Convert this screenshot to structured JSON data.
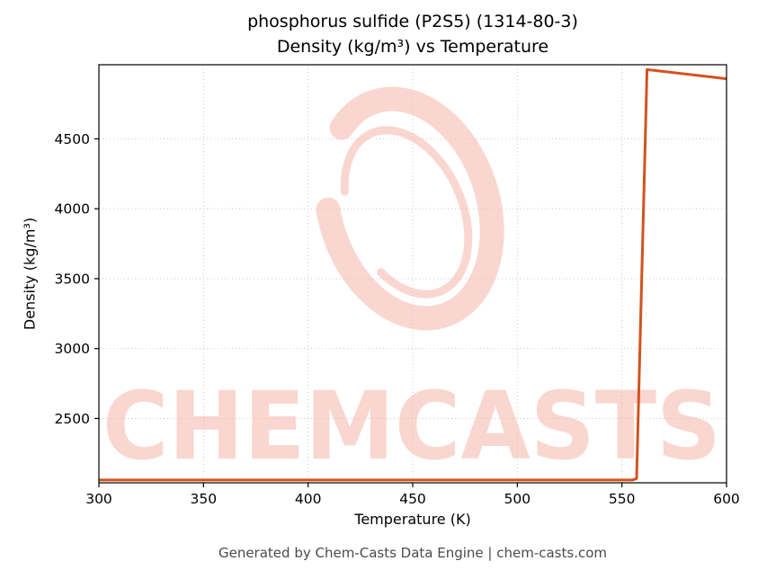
{
  "title": {
    "line1": "phosphorus sulfide (P2S5) (1314-80-3)",
    "line2": "Density (kg/m³) vs Temperature"
  },
  "footer": "Generated by Chem-Casts Data Engine | chem-casts.com",
  "watermark": {
    "text": "CHEMCASTS",
    "color": "#f5b6a8",
    "logo_color": "#f6beb2",
    "text_opacity": 0.55,
    "logo_opacity": 0.6
  },
  "chart_data": {
    "type": "line",
    "title": "phosphorus sulfide (P2S5) (1314-80-3) — Density (kg/m³) vs Temperature",
    "xlabel": "Temperature (K)",
    "ylabel": "Density (kg/m³)",
    "xlim": [
      300,
      600
    ],
    "ylim": [
      2040,
      5030
    ],
    "x_ticks": [
      300,
      350,
      400,
      450,
      500,
      550,
      600
    ],
    "y_ticks": [
      2500,
      3000,
      3500,
      4000,
      4500
    ],
    "grid": true,
    "grid_color": "#c8c8c8",
    "line_color": "#d2531e",
    "line_width": 3,
    "series": [
      {
        "name": "density",
        "points": [
          [
            300,
            2060
          ],
          [
            555,
            2060
          ],
          [
            557,
            2070
          ],
          [
            562,
            4995
          ],
          [
            600,
            4930
          ]
        ]
      }
    ]
  }
}
